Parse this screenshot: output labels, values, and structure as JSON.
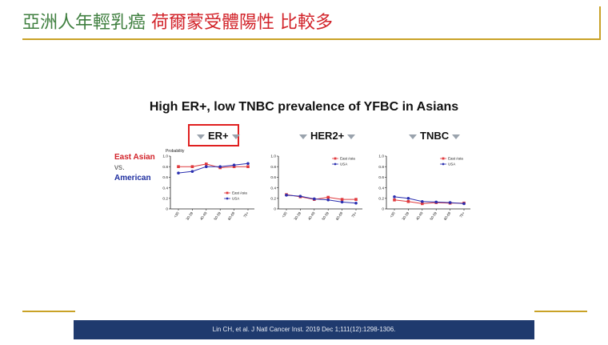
{
  "slide": {
    "title_part1": "亞洲人年輕乳癌",
    "title_part2": "荷爾蒙受體陽性",
    "title_part3": "比較多",
    "subtitle": "High ER+, low TNBC prevalence of YFBC in Asians",
    "side_legend": {
      "east_asian": "East Asian",
      "vs": "vs.",
      "american": "American"
    },
    "footer": "Lin CH, et al. J Natl Cancer Inst. 2019 Dec 1;111(12):1298-1306.",
    "colors": {
      "east_asia": "#e03a3e",
      "usa": "#2a2fb0",
      "gold": "#c9a227",
      "footer_bg": "#1f3a6e"
    }
  },
  "chart_data": [
    {
      "type": "line",
      "title": "ER+",
      "ylabel": "Probability",
      "ylim": [
        0,
        1.0
      ],
      "yticks": [
        "0",
        "0.2",
        "0.4",
        "0.6",
        "0.8",
        "1.0"
      ],
      "categories": [
        "<30",
        "30-39",
        "40-49",
        "50-59",
        "60-69",
        "75+"
      ],
      "legend_position": "bottom-right",
      "series": [
        {
          "name": "East Asia",
          "values": [
            0.8,
            0.8,
            0.85,
            0.78,
            0.8,
            0.8
          ]
        },
        {
          "name": "USA",
          "values": [
            0.68,
            0.71,
            0.8,
            0.8,
            0.83,
            0.86
          ]
        }
      ]
    },
    {
      "type": "line",
      "title": "HER2+",
      "ylabel": "",
      "ylim": [
        0,
        1.0
      ],
      "yticks": [
        "0",
        "0.2",
        "0.4",
        "0.6",
        "0.8",
        "1.0"
      ],
      "categories": [
        "<30",
        "30-39",
        "40-49",
        "50-59",
        "60-69",
        "75+"
      ],
      "legend_position": "top-right",
      "series": [
        {
          "name": "East Asia",
          "values": [
            0.27,
            0.23,
            0.18,
            0.22,
            0.18,
            0.18
          ]
        },
        {
          "name": "USA",
          "values": [
            0.26,
            0.24,
            0.19,
            0.17,
            0.13,
            0.11
          ]
        }
      ]
    },
    {
      "type": "line",
      "title": "TNBC",
      "ylabel": "",
      "ylim": [
        0,
        1.0
      ],
      "yticks": [
        "0",
        "0.2",
        "0.4",
        "0.6",
        "0.8",
        "1.0"
      ],
      "categories": [
        "<30",
        "30-39",
        "40-49",
        "50-59",
        "60-69",
        "75+"
      ],
      "legend_position": "top-right",
      "series": [
        {
          "name": "East Asia",
          "values": [
            0.17,
            0.14,
            0.1,
            0.12,
            0.11,
            0.11
          ]
        },
        {
          "name": "USA",
          "values": [
            0.23,
            0.2,
            0.14,
            0.13,
            0.12,
            0.1
          ]
        }
      ]
    }
  ]
}
